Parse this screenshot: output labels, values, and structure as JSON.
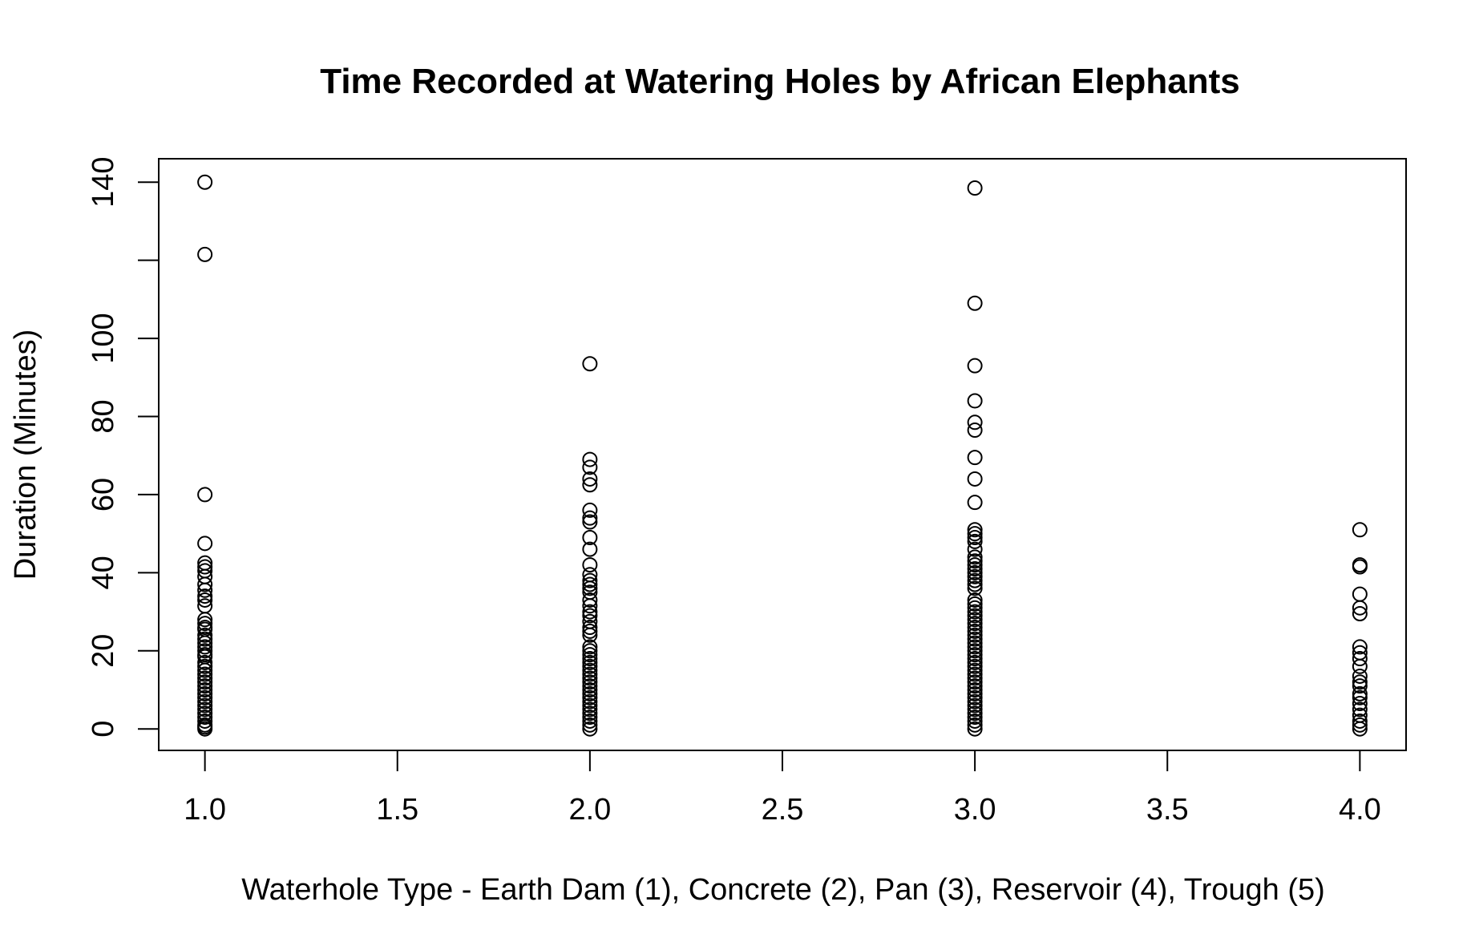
{
  "chart_data": {
    "type": "scatter",
    "title": "Time Recorded at Watering Holes by African Elephants",
    "xlabel": "Waterhole Type - Earth Dam (1), Concrete (2), Pan (3), Reservoir (4), Trough (5)",
    "ylabel": "Duration (Minutes)",
    "xlim": [
      0.88,
      4.12
    ],
    "ylim": [
      -5.5,
      146
    ],
    "x_ticks": [
      1.0,
      1.5,
      2.0,
      2.5,
      3.0,
      3.5,
      4.0
    ],
    "x_tick_labels": [
      "1.0",
      "1.5",
      "2.0",
      "2.5",
      "3.0",
      "3.5",
      "4.0"
    ],
    "y_ticks": [
      0,
      20,
      40,
      60,
      80,
      100,
      120,
      140
    ],
    "y_tick_labels": [
      "0",
      "20",
      "40",
      "60",
      "80",
      "100",
      "",
      "140"
    ],
    "marker": "open-circle",
    "grid": false,
    "legend": "none",
    "series": [
      {
        "x": 1,
        "y": [
          140,
          121.5,
          60,
          47.5,
          42.5,
          41.5,
          40.5,
          39,
          37,
          35.5,
          34,
          33,
          31.5,
          28,
          27,
          26,
          25.5,
          24,
          23,
          22,
          21,
          20,
          19,
          18.5,
          17,
          16,
          15,
          14,
          13,
          12,
          11,
          10,
          9,
          8,
          7,
          6,
          5,
          4,
          3,
          2,
          1,
          0.5,
          0
        ]
      },
      {
        "x": 2,
        "y": [
          93.5,
          69,
          67,
          64,
          62.5,
          56,
          54,
          53,
          49,
          46,
          42,
          39.5,
          38,
          37,
          36,
          35,
          33,
          31.5,
          30,
          29,
          27.5,
          26,
          25,
          24,
          21,
          20,
          19,
          18,
          17,
          16,
          15,
          14,
          13,
          12,
          11,
          10,
          9,
          8,
          7,
          6,
          5,
          4,
          3,
          2,
          1,
          0
        ]
      },
      {
        "x": 3,
        "y": [
          138.5,
          109,
          93,
          84,
          78.5,
          76.5,
          69.5,
          64,
          58,
          51,
          50,
          49,
          48,
          46,
          44,
          43,
          42,
          41,
          40,
          39,
          38,
          37,
          36,
          33,
          32,
          31,
          30,
          29,
          28,
          27,
          26,
          25,
          24,
          23,
          22,
          21,
          20,
          19,
          18,
          17,
          16,
          15,
          14,
          13,
          12,
          11,
          10,
          9,
          8,
          7,
          6,
          5,
          4,
          3,
          2,
          1,
          0
        ]
      },
      {
        "x": 4,
        "y": [
          51,
          42,
          41.5,
          34.5,
          31,
          29.5,
          21,
          19.5,
          18,
          16,
          13.5,
          12,
          11,
          9,
          8,
          6.5,
          5,
          3.5,
          2,
          1,
          0
        ]
      }
    ]
  }
}
